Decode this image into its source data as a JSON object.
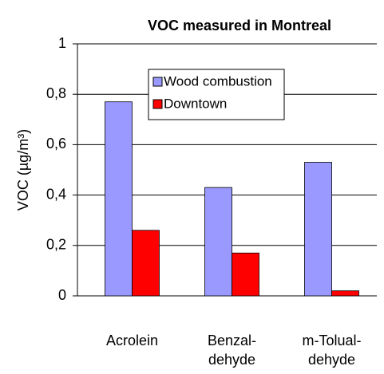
{
  "chart_data": {
    "type": "bar",
    "title": "VOC measured in Montreal",
    "y_label": "VOC (µg/m³)",
    "categories": [
      "Acrolein",
      "Benzal-\ndehyde",
      "m-Tolual-\ndehyde"
    ],
    "series": [
      {
        "name": "Wood combustion",
        "color": "#9999ff",
        "values": [
          0.77,
          0.43,
          0.53
        ]
      },
      {
        "name": "Downtown",
        "color": "#ff0000",
        "values": [
          0.26,
          0.17,
          0.02
        ]
      }
    ],
    "ylim": [
      0,
      1
    ],
    "yticks": [
      0,
      {
        "value": 0.2,
        "label": "0,2"
      },
      {
        "value": 0.4,
        "label": "0,4"
      },
      {
        "value": 0.6,
        "label": "0,6"
      },
      {
        "value": 0.8,
        "label": "0,8"
      },
      1
    ],
    "grid": true,
    "legend": "top-right"
  }
}
